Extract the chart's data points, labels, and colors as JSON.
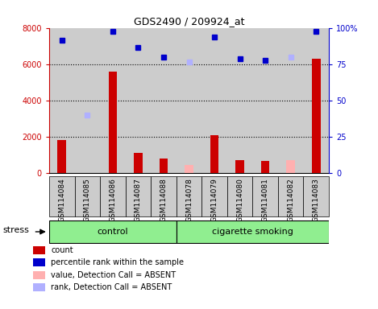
{
  "title": "GDS2490 / 209924_at",
  "samples": [
    "GSM114084",
    "GSM114085",
    "GSM114086",
    "GSM114087",
    "GSM114088",
    "GSM114078",
    "GSM114079",
    "GSM114080",
    "GSM114081",
    "GSM114082",
    "GSM114083"
  ],
  "count_values": [
    1800,
    0,
    5600,
    1100,
    800,
    0,
    2100,
    700,
    650,
    0,
    6300
  ],
  "count_absent": [
    0,
    0,
    0,
    0,
    0,
    450,
    0,
    0,
    0,
    700,
    0
  ],
  "rank_values": [
    7300,
    0,
    7800,
    6900,
    6400,
    6100,
    7500,
    6300,
    6200,
    6400,
    7800
  ],
  "rank_absent": [
    0,
    3200,
    0,
    0,
    0,
    6100,
    0,
    0,
    0,
    6400,
    0
  ],
  "count_present": [
    true,
    false,
    true,
    true,
    true,
    false,
    true,
    true,
    true,
    false,
    true
  ],
  "rank_present": [
    true,
    false,
    true,
    true,
    true,
    false,
    true,
    true,
    true,
    false,
    true
  ],
  "ylim_left": [
    0,
    8000
  ],
  "ylim_right": [
    0,
    100
  ],
  "yticks_left": [
    0,
    2000,
    4000,
    6000,
    8000
  ],
  "yticks_right": [
    0,
    25,
    50,
    75,
    100
  ],
  "ytick_labels_right": [
    "0",
    "25",
    "50",
    "75",
    "100%"
  ],
  "left_color": "#cc0000",
  "right_color": "#0000cc",
  "absent_count_color": "#ffb0b0",
  "absent_rank_color": "#b0b0ff",
  "bar_bg_color": "#cccccc",
  "n_control": 5,
  "n_smoking": 6,
  "control_label": "control",
  "smoking_label": "cigarette smoking",
  "stress_label": "stress",
  "group_color": "#90ee90",
  "legend_items": [
    {
      "label": "count",
      "color": "#cc0000"
    },
    {
      "label": "percentile rank within the sample",
      "color": "#0000cc"
    },
    {
      "label": "value, Detection Call = ABSENT",
      "color": "#ffb0b0"
    },
    {
      "label": "rank, Detection Call = ABSENT",
      "color": "#b0b0ff"
    }
  ]
}
